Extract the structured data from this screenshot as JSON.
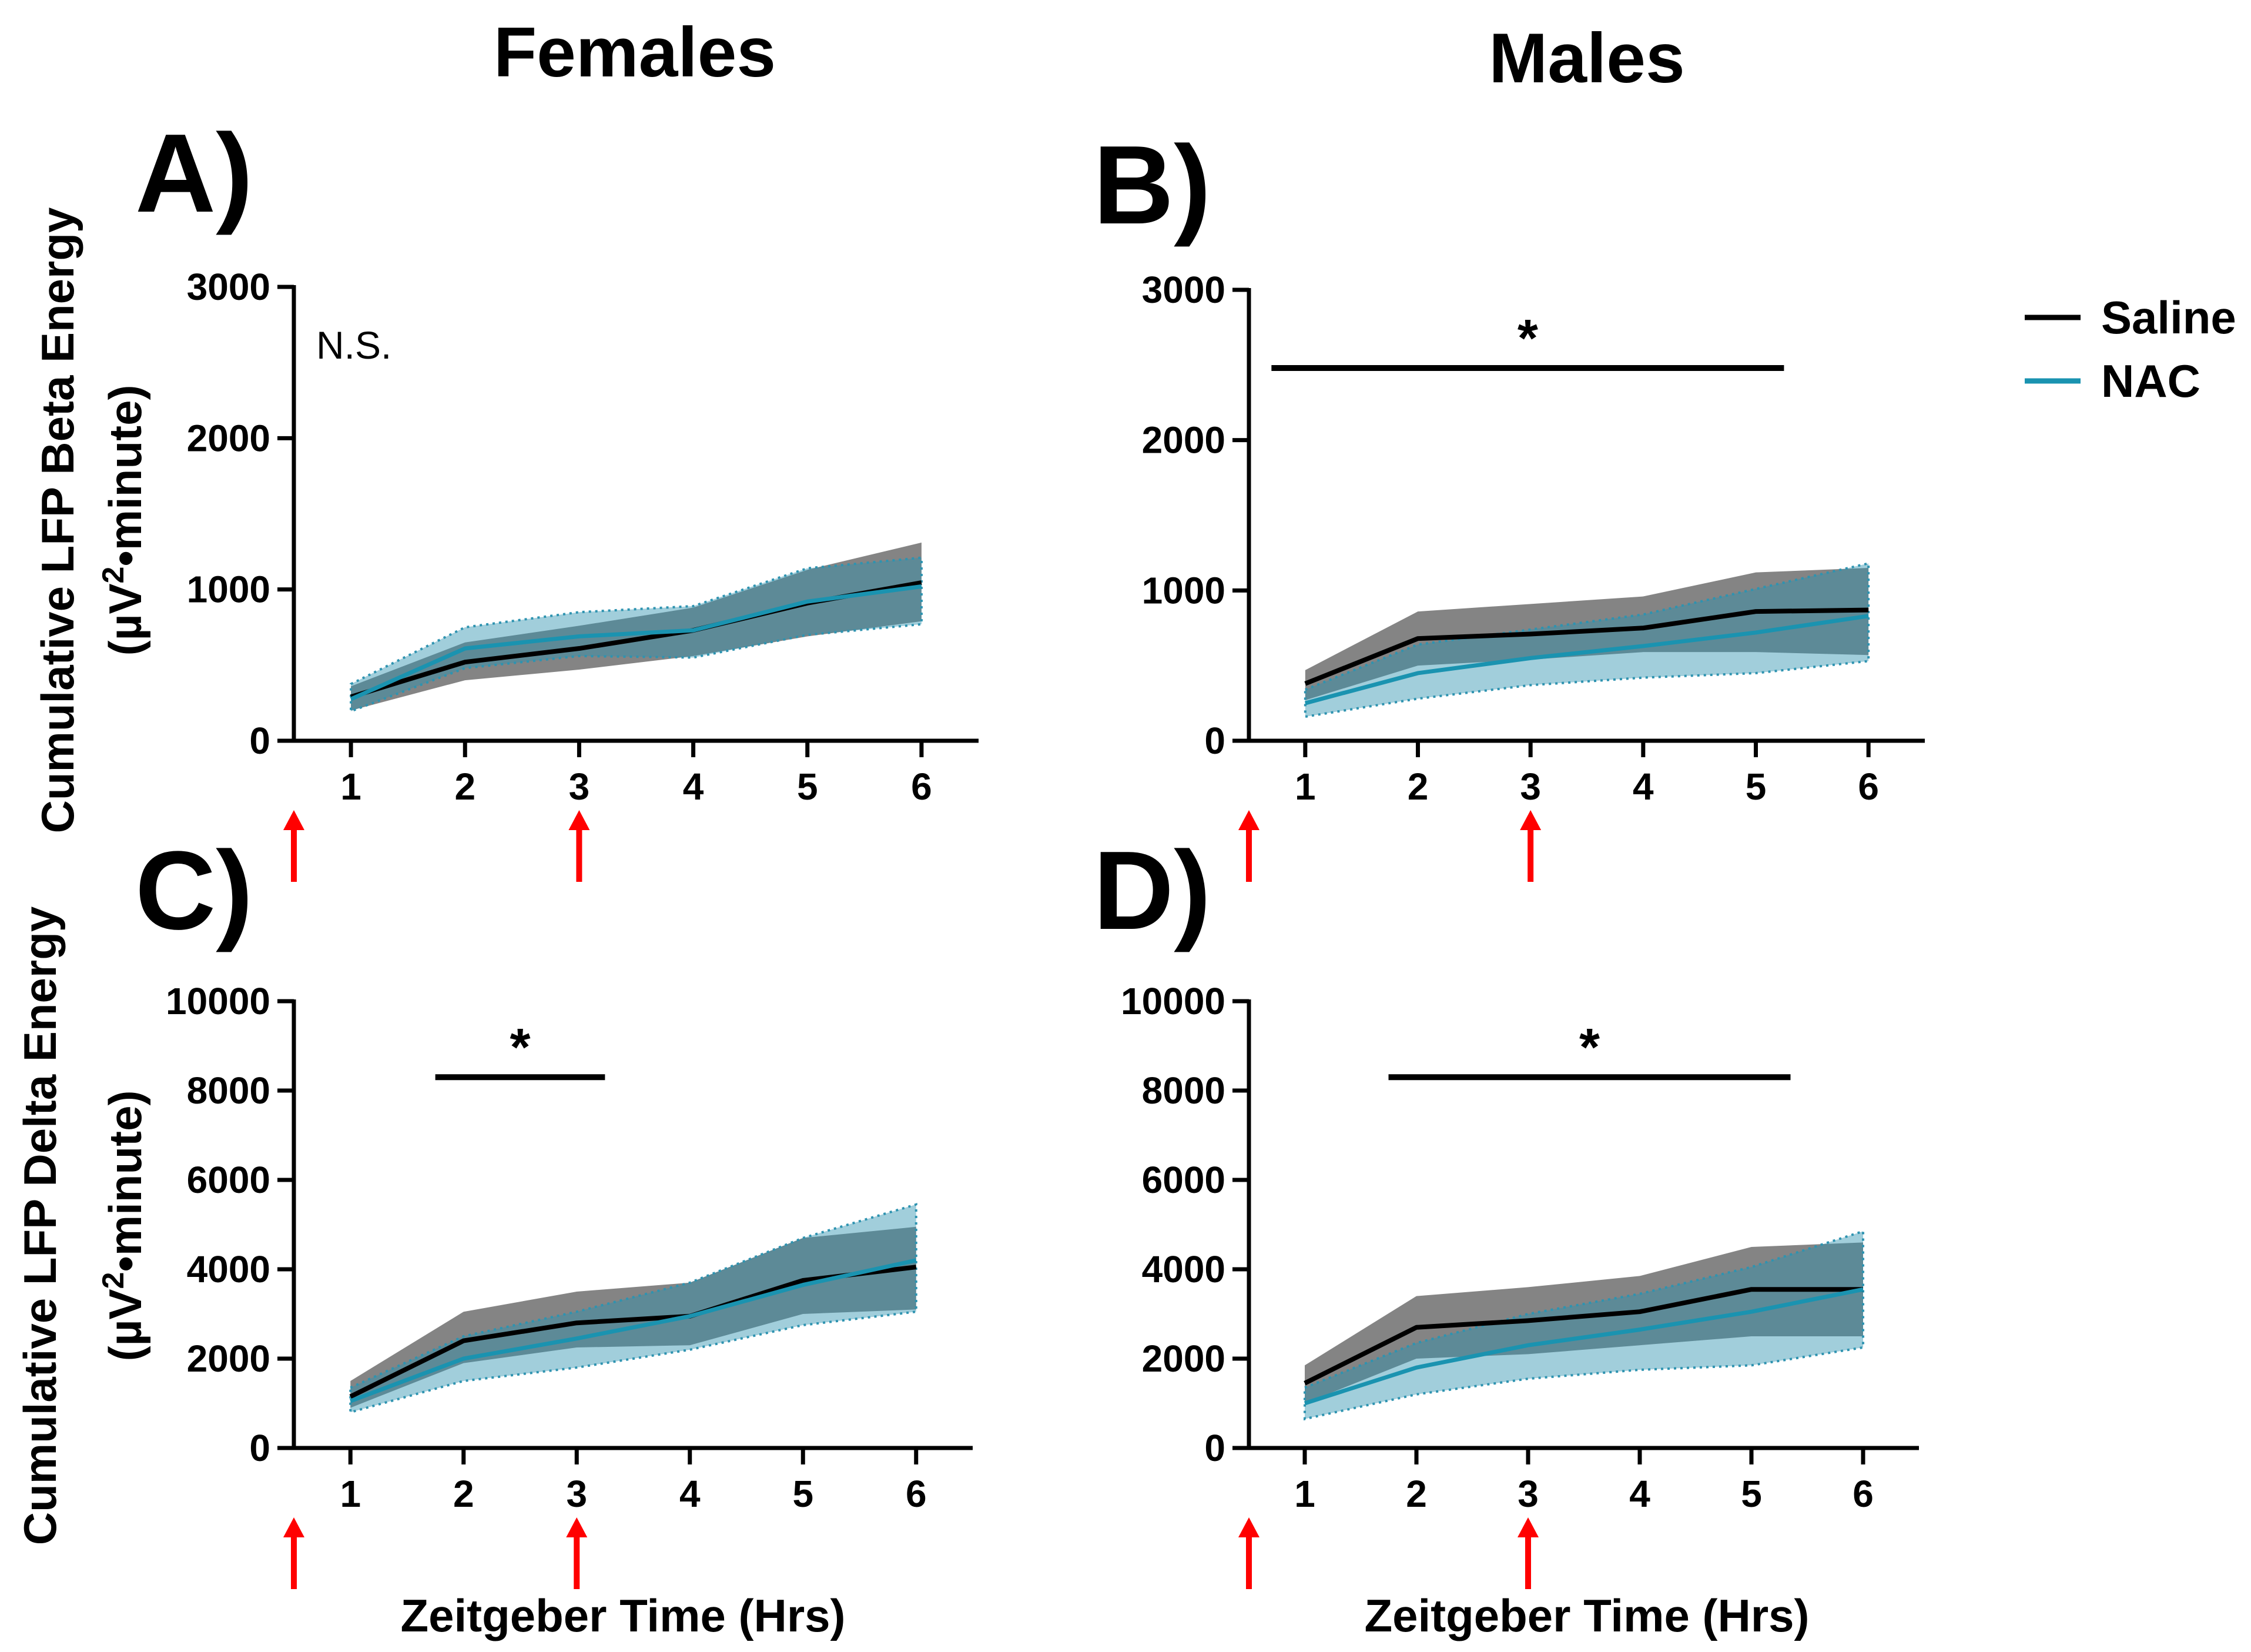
{
  "column_titles": {
    "females": "Females",
    "males": "Males"
  },
  "x_label": "Zeitgeber Time (Hrs)",
  "y_labels": {
    "beta": {
      "line1": "Cumulative LFP Beta Energy",
      "line2_pre": "(µV",
      "line2_sup": "2",
      "line2_post": "•minute)"
    },
    "delta": {
      "line1": "Cumulative LFP Delta Energy",
      "line2_pre": "(µV",
      "line2_sup": "2",
      "line2_post": "•minute)"
    }
  },
  "legend": [
    {
      "name": "Saline",
      "color": "#000000"
    },
    {
      "name": "NAC",
      "color": "#1a93b0"
    }
  ],
  "colors": {
    "saline_band": "#555555",
    "nac_band": "#2e93b0",
    "arrow": "#ff0000"
  },
  "chart_data": [
    {
      "panel": "A)",
      "type": "line",
      "sex": "Females",
      "measure": "Beta",
      "x": [
        1,
        2,
        3,
        4,
        5,
        6
      ],
      "xlim": [
        0.5,
        6.5
      ],
      "ylim": [
        0,
        3000
      ],
      "yticks": [
        0,
        1000,
        2000,
        3000
      ],
      "series": [
        {
          "name": "Saline",
          "values": [
            290,
            520,
            610,
            730,
            910,
            1045
          ],
          "lower": [
            200,
            400,
            470,
            560,
            690,
            790
          ],
          "upper": [
            360,
            650,
            760,
            880,
            1130,
            1310
          ]
        },
        {
          "name": "NAC",
          "values": [
            275,
            610,
            690,
            730,
            920,
            1020
          ],
          "lower": [
            195,
            480,
            560,
            550,
            700,
            770
          ],
          "upper": [
            375,
            750,
            850,
            890,
            1140,
            1210
          ]
        }
      ],
      "annotation": {
        "text": "N.S."
      },
      "arrows_at": [
        0.5,
        3
      ]
    },
    {
      "panel": "B)",
      "type": "line",
      "sex": "Males",
      "measure": "Beta",
      "x": [
        1,
        2,
        3,
        4,
        5,
        6
      ],
      "xlim": [
        0.5,
        6.5
      ],
      "ylim": [
        0,
        3000
      ],
      "yticks": [
        0,
        1000,
        2000,
        3000
      ],
      "series": [
        {
          "name": "Saline",
          "values": [
            380,
            680,
            710,
            750,
            860,
            870
          ],
          "lower": [
            270,
            500,
            540,
            590,
            590,
            570
          ],
          "upper": [
            470,
            860,
            910,
            960,
            1120,
            1150
          ]
        },
        {
          "name": "NAC",
          "values": [
            250,
            450,
            550,
            630,
            720,
            830
          ],
          "lower": [
            160,
            280,
            370,
            420,
            450,
            530
          ],
          "upper": [
            340,
            640,
            740,
            840,
            1010,
            1180
          ]
        }
      ],
      "significance": {
        "text": "*",
        "from": 0.7,
        "to": 5.25,
        "y": 2480
      },
      "arrows_at": [
        0.5,
        3
      ]
    },
    {
      "panel": "C)",
      "type": "line",
      "sex": "Females",
      "measure": "Delta",
      "x": [
        1,
        2,
        3,
        4,
        5,
        6
      ],
      "xlim": [
        0.5,
        6.5
      ],
      "ylim": [
        0,
        10000
      ],
      "yticks": [
        0,
        2000,
        4000,
        6000,
        8000,
        10000
      ],
      "series": [
        {
          "name": "Saline",
          "values": [
            1150,
            2400,
            2800,
            2950,
            3750,
            4050
          ],
          "lower": [
            900,
            1900,
            2250,
            2300,
            3000,
            3100
          ],
          "upper": [
            1500,
            3050,
            3500,
            3700,
            4700,
            4950
          ]
        },
        {
          "name": "NAC",
          "values": [
            1050,
            2000,
            2450,
            2950,
            3650,
            4200
          ],
          "lower": [
            800,
            1500,
            1800,
            2200,
            2750,
            3050
          ],
          "upper": [
            1350,
            2500,
            3050,
            3700,
            4700,
            5450
          ]
        }
      ],
      "significance": {
        "text": "*",
        "from": 1.75,
        "to": 3.25,
        "y": 8300
      },
      "arrows_at": [
        0.5,
        3
      ]
    },
    {
      "panel": "D)",
      "type": "line",
      "sex": "Males",
      "measure": "Delta",
      "x": [
        1,
        2,
        3,
        4,
        5,
        6
      ],
      "xlim": [
        0.5,
        6.5
      ],
      "ylim": [
        0,
        10000
      ],
      "yticks": [
        0,
        2000,
        4000,
        6000,
        8000,
        10000
      ],
      "series": [
        {
          "name": "Saline",
          "values": [
            1450,
            2700,
            2850,
            3050,
            3550,
            3550
          ],
          "lower": [
            1000,
            2000,
            2100,
            2300,
            2500,
            2500
          ],
          "upper": [
            1850,
            3400,
            3600,
            3850,
            4500,
            4600
          ]
        },
        {
          "name": "NAC",
          "values": [
            1000,
            1800,
            2300,
            2650,
            3050,
            3550
          ],
          "lower": [
            650,
            1200,
            1550,
            1750,
            1850,
            2250
          ],
          "upper": [
            1350,
            2350,
            3000,
            3450,
            4050,
            4850
          ]
        }
      ],
      "significance": {
        "text": "*",
        "from": 1.75,
        "to": 5.35,
        "y": 8300
      },
      "arrows_at": [
        0.5,
        3
      ]
    }
  ]
}
